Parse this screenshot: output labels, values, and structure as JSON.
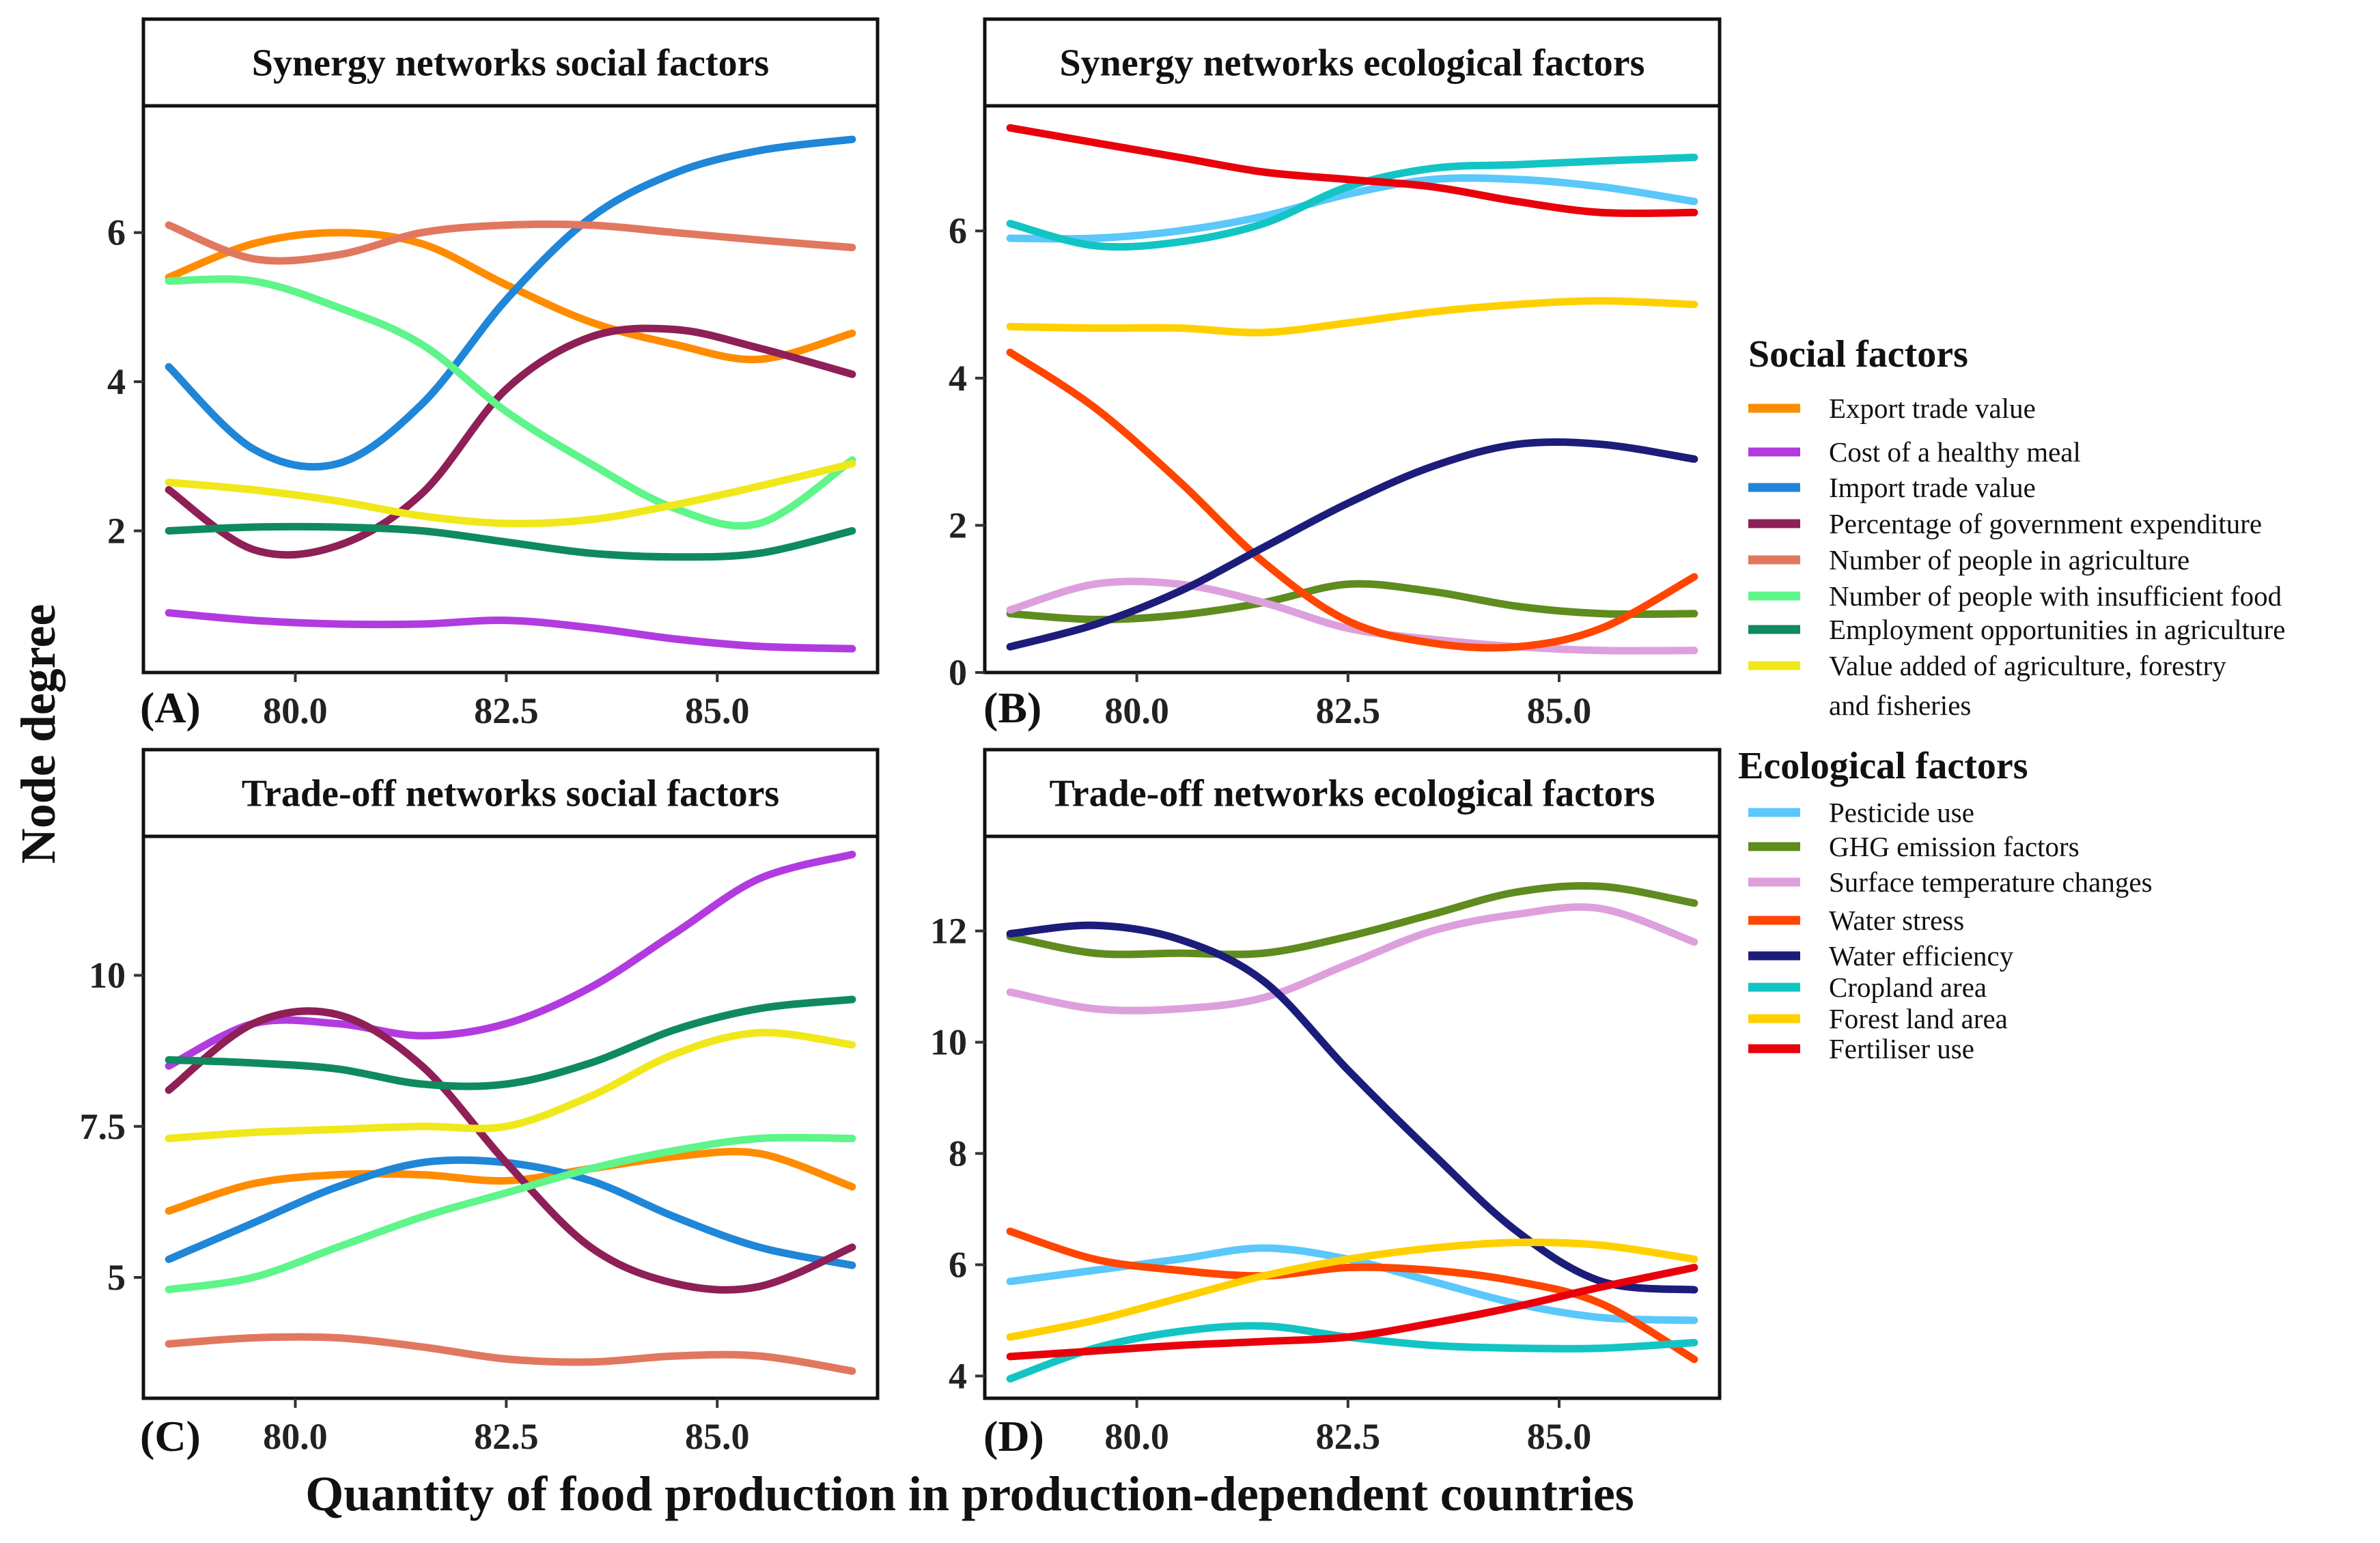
{
  "chart_data": {
    "type": "line",
    "xlabel": "Quantity of food production in production-dependent countries",
    "ylabel": "Node degree",
    "x": [
      78.5,
      79.5,
      80.5,
      81.5,
      82.5,
      83.5,
      84.5,
      85.5,
      86.6
    ],
    "xticks": [
      "80.0",
      "82.5",
      "85.0"
    ],
    "panels": [
      {
        "label": "(A)",
        "title": "Synergy networks social factors",
        "ylim": [
          0.1,
          7.7
        ],
        "yticks": [
          "2",
          "4",
          "6"
        ],
        "series": [
          {
            "name": "Export trade value",
            "color": "#FF8C00",
            "values": [
              5.4,
              5.85,
              6.0,
              5.85,
              5.3,
              4.8,
              4.5,
              4.3,
              4.65
            ]
          },
          {
            "name": "Cost of a healthy meal",
            "color": "#B23BE0",
            "values": [
              0.9,
              0.8,
              0.75,
              0.75,
              0.8,
              0.7,
              0.55,
              0.45,
              0.42
            ]
          },
          {
            "name": "Import trade value",
            "color": "#1F86D8",
            "values": [
              4.2,
              3.1,
              2.9,
              3.7,
              5.1,
              6.2,
              6.8,
              7.1,
              7.25
            ]
          },
          {
            "name": "Percentage of government expenditure",
            "color": "#8E1F57",
            "values": [
              2.55,
              1.75,
              1.8,
              2.5,
              3.9,
              4.6,
              4.7,
              4.45,
              4.1
            ]
          },
          {
            "name": "Number of people in agriculture",
            "color": "#E2775F",
            "values": [
              6.1,
              5.65,
              5.7,
              6.0,
              6.1,
              6.1,
              6.0,
              5.9,
              5.8
            ]
          },
          {
            "name": "Number of people with insufficient food",
            "color": "#5EF58A",
            "values": [
              5.35,
              5.35,
              5.0,
              4.5,
              3.6,
              2.9,
              2.3,
              2.1,
              2.95
            ]
          },
          {
            "name": "Employment opportunities in agriculture",
            "color": "#0F8A5F",
            "values": [
              2.0,
              2.05,
              2.05,
              2.0,
              1.85,
              1.7,
              1.65,
              1.7,
              2.0
            ]
          },
          {
            "name": "Value added of agriculture, forestry and fisheries",
            "color": "#F0E81A",
            "values": [
              2.65,
              2.55,
              2.4,
              2.2,
              2.1,
              2.15,
              2.35,
              2.6,
              2.9
            ]
          }
        ]
      },
      {
        "label": "(B)",
        "title": "Synergy networks ecological factors",
        "ylim": [
          0.0,
          7.7
        ],
        "yticks": [
          "0",
          "2",
          "4",
          "6"
        ],
        "series": [
          {
            "name": "Pesticide use",
            "color": "#5AC8FA",
            "values": [
              5.9,
              5.9,
              6.0,
              6.2,
              6.5,
              6.7,
              6.7,
              6.6,
              6.4
            ]
          },
          {
            "name": "GHG emission factors",
            "color": "#5E8C1E",
            "values": [
              0.8,
              0.72,
              0.78,
              0.95,
              1.2,
              1.1,
              0.9,
              0.8,
              0.8
            ]
          },
          {
            "name": "Surface temperature changes",
            "color": "#DDA0DD",
            "values": [
              0.85,
              1.2,
              1.2,
              0.95,
              0.6,
              0.45,
              0.35,
              0.3,
              0.3
            ]
          },
          {
            "name": "Water stress",
            "color": "#FF4500",
            "values": [
              4.35,
              3.6,
              2.6,
              1.5,
              0.7,
              0.4,
              0.35,
              0.6,
              1.3
            ]
          },
          {
            "name": "Water efficiency",
            "color": "#1C1C7A",
            "values": [
              0.35,
              0.65,
              1.1,
              1.7,
              2.3,
              2.8,
              3.1,
              3.1,
              2.9
            ]
          },
          {
            "name": "Cropland area",
            "color": "#13C4C4",
            "values": [
              6.1,
              5.8,
              5.85,
              6.1,
              6.6,
              6.85,
              6.9,
              6.95,
              7.0
            ]
          },
          {
            "name": "Forest land area",
            "color": "#FFD000",
            "values": [
              4.7,
              4.68,
              4.68,
              4.62,
              4.75,
              4.9,
              5.0,
              5.05,
              5.0
            ]
          },
          {
            "name": "Fertiliser use",
            "color": "#E8000B",
            "values": [
              7.4,
              7.2,
              7.0,
              6.8,
              6.7,
              6.6,
              6.4,
              6.25,
              6.25
            ]
          }
        ]
      },
      {
        "label": "(C)",
        "title": "Trade-off networks social factors",
        "ylim": [
          3.0,
          12.3
        ],
        "yticks": [
          "5",
          "7.5",
          "10"
        ],
        "series": [
          {
            "name": "Export trade value",
            "color": "#FF8C00",
            "values": [
              6.1,
              6.55,
              6.7,
              6.7,
              6.6,
              6.8,
              7.0,
              7.05,
              6.5
            ]
          },
          {
            "name": "Cost of a healthy meal",
            "color": "#B23BE0",
            "values": [
              8.5,
              9.2,
              9.2,
              9.0,
              9.2,
              9.8,
              10.7,
              11.6,
              12.0
            ]
          },
          {
            "name": "Import trade value",
            "color": "#1F86D8",
            "values": [
              5.3,
              5.9,
              6.5,
              6.9,
              6.9,
              6.6,
              6.0,
              5.5,
              5.2
            ]
          },
          {
            "name": "Percentage of government expenditure",
            "color": "#8E1F57",
            "values": [
              8.1,
              9.2,
              9.35,
              8.5,
              6.9,
              5.5,
              4.9,
              4.85,
              5.5
            ]
          },
          {
            "name": "Number of people in agriculture",
            "color": "#E2775F",
            "values": [
              3.9,
              4.0,
              4.0,
              3.85,
              3.65,
              3.6,
              3.7,
              3.7,
              3.45
            ]
          },
          {
            "name": "Number of people with insufficient food",
            "color": "#5EF58A",
            "values": [
              4.8,
              5.0,
              5.5,
              6.0,
              6.4,
              6.8,
              7.1,
              7.3,
              7.3
            ]
          },
          {
            "name": "Employment opportunities in agriculture",
            "color": "#0F8A5F",
            "values": [
              8.6,
              8.55,
              8.45,
              8.2,
              8.2,
              8.55,
              9.1,
              9.45,
              9.6
            ]
          },
          {
            "name": "Value added of agriculture, forestry and fisheries",
            "color": "#F0E81A",
            "values": [
              7.3,
              7.4,
              7.45,
              7.5,
              7.5,
              8.0,
              8.7,
              9.05,
              8.85
            ]
          }
        ]
      },
      {
        "label": "(D)",
        "title": "Trade-off networks ecological factors",
        "ylim": [
          3.6,
          13.7
        ],
        "yticks": [
          "4",
          "6",
          "8",
          "10",
          "12"
        ],
        "series": [
          {
            "name": "Pesticide use",
            "color": "#5AC8FA",
            "values": [
              5.7,
              5.9,
              6.1,
              6.3,
              6.1,
              5.7,
              5.3,
              5.05,
              5.0
            ]
          },
          {
            "name": "GHG emission factors",
            "color": "#5E8C1E",
            "values": [
              11.9,
              11.6,
              11.6,
              11.6,
              11.9,
              12.3,
              12.7,
              12.8,
              12.5
            ]
          },
          {
            "name": "Surface temperature changes",
            "color": "#DDA0DD",
            "values": [
              10.9,
              10.6,
              10.6,
              10.8,
              11.4,
              12.0,
              12.3,
              12.4,
              11.8
            ]
          },
          {
            "name": "Water stress",
            "color": "#FF4500",
            "values": [
              6.6,
              6.1,
              5.9,
              5.8,
              5.95,
              5.9,
              5.7,
              5.3,
              4.3
            ]
          },
          {
            "name": "Water efficiency",
            "color": "#1C1C7A",
            "values": [
              11.95,
              12.1,
              11.85,
              11.1,
              9.5,
              8.0,
              6.6,
              5.7,
              5.55
            ]
          },
          {
            "name": "Cropland area",
            "color": "#13C4C4",
            "values": [
              3.95,
              4.5,
              4.8,
              4.9,
              4.7,
              4.55,
              4.5,
              4.5,
              4.6
            ]
          },
          {
            "name": "Forest land area",
            "color": "#FFD000",
            "values": [
              4.7,
              5.0,
              5.4,
              5.8,
              6.1,
              6.3,
              6.4,
              6.35,
              6.1
            ]
          },
          {
            "name": "Fertiliser use",
            "color": "#E8000B",
            "values": [
              4.35,
              4.45,
              4.55,
              4.62,
              4.7,
              4.95,
              5.25,
              5.6,
              5.95
            ]
          }
        ]
      }
    ]
  },
  "legend": {
    "social_title": "Social factors",
    "social": [
      {
        "name": "Export trade value",
        "color": "#FF8C00"
      },
      {
        "name": "Cost of a healthy meal",
        "color": "#B23BE0"
      },
      {
        "name": "Import trade value",
        "color": "#1F86D8"
      },
      {
        "name": "Percentage of government expenditure",
        "color": "#8E1F57"
      },
      {
        "name": "Number of people in agriculture",
        "color": "#E2775F"
      },
      {
        "name": "Number of people with insufficient food",
        "color": "#5EF58A"
      },
      {
        "name": "Employment opportunities in agriculture",
        "color": "#0F8A5F"
      },
      {
        "name": "Value added of agriculture, forestry",
        "name2": "and fisheries",
        "color": "#F0E81A"
      }
    ],
    "ecological_title": "Ecological factors",
    "ecological": [
      {
        "name": "Pesticide use",
        "color": "#5AC8FA"
      },
      {
        "name": "GHG emission factors",
        "color": "#5E8C1E"
      },
      {
        "name": "Surface temperature changes",
        "color": "#DDA0DD"
      },
      {
        "name": "Water stress",
        "color": "#FF4500"
      },
      {
        "name": "Water efficiency",
        "color": "#1C1C7A"
      },
      {
        "name": "Cropland area",
        "color": "#13C4C4"
      },
      {
        "name": "Forest land area",
        "color": "#FFD000"
      },
      {
        "name": "Fertiliser use",
        "color": "#E8000B"
      }
    ]
  }
}
